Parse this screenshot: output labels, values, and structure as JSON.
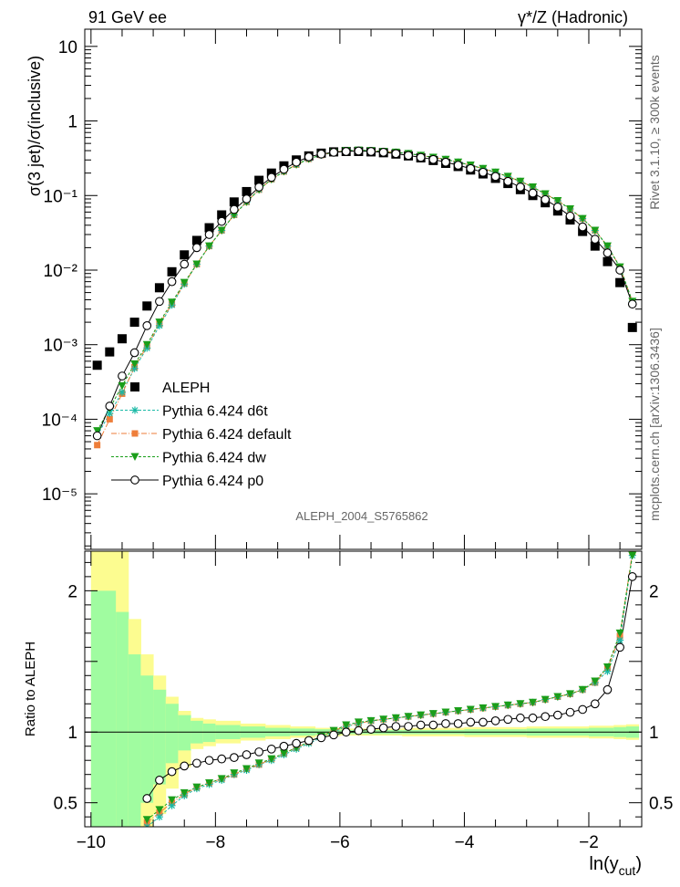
{
  "header": {
    "left": "91 GeV ee",
    "right": "γ*/Z (Hadronic)"
  },
  "side_labels": {
    "rivet": "Rivet 3.1.10, ≥ 300k events",
    "mcplots": "mcplots.cern.ch [arXiv:1306.3436]"
  },
  "analysis_id": "ALEPH_2004_S5765862",
  "colors": {
    "band_inner": "#a0fca0",
    "band_outer": "#fcfc90",
    "d6t": "#1ab9a6",
    "default": "#ee7e3a",
    "dw": "#1a9e1a",
    "p0": "#000000",
    "data": "#000000"
  },
  "chart_data": [
    {
      "type": "scatter",
      "panel": "main",
      "ylabel": "σ(3 jet)/σ(inclusive)",
      "yscale": "log",
      "ylim": [
        1.8e-06,
        17
      ],
      "xlim": [
        -10.1,
        -1.15
      ],
      "y_ticks": [
        {
          "v": 10,
          "label": "10"
        },
        {
          "v": 1,
          "label": "1"
        },
        {
          "v": 0.1,
          "label": "10⁻¹"
        },
        {
          "v": 0.01,
          "label": "10⁻²"
        },
        {
          "v": 0.001,
          "label": "10⁻³"
        },
        {
          "v": 0.0001,
          "label": "10⁻⁴"
        },
        {
          "v": 1e-05,
          "label": "10⁻⁵"
        }
      ],
      "legend": [
        "ALEPH",
        "Pythia 6.424 d6t",
        "Pythia 6.424 default",
        "Pythia 6.424 dw",
        "Pythia 6.424 p0"
      ],
      "legend_position": "left",
      "x": [
        -9.9,
        -9.7,
        -9.5,
        -9.3,
        -9.1,
        -8.9,
        -8.7,
        -8.5,
        -8.3,
        -8.1,
        -7.9,
        -7.7,
        -7.5,
        -7.3,
        -7.1,
        -6.9,
        -6.7,
        -6.5,
        -6.3,
        -6.1,
        -5.9,
        -5.7,
        -5.5,
        -5.3,
        -5.1,
        -4.9,
        -4.7,
        -4.5,
        -4.3,
        -4.1,
        -3.9,
        -3.7,
        -3.5,
        -3.3,
        -3.1,
        -2.9,
        -2.7,
        -2.5,
        -2.3,
        -2.1,
        -1.9,
        -1.7,
        -1.5,
        -1.3
      ],
      "series": [
        {
          "name": "ALEPH",
          "key": "data",
          "values": [
            0.00053,
            0.0008,
            0.0012,
            0.002,
            0.0033,
            0.0058,
            0.0095,
            0.016,
            0.025,
            0.037,
            0.055,
            0.082,
            0.113,
            0.16,
            0.2,
            0.25,
            0.3,
            0.34,
            0.37,
            0.385,
            0.39,
            0.39,
            0.385,
            0.375,
            0.36,
            0.34,
            0.32,
            0.295,
            0.27,
            0.245,
            0.22,
            0.195,
            0.17,
            0.145,
            0.12,
            0.1,
            0.08,
            0.062,
            0.047,
            0.033,
            0.021,
            0.013,
            0.0068,
            0.0017
          ]
        },
        {
          "name": "Pythia 6.424 d6t",
          "key": "d6t",
          "values": [
            6e-05,
            0.00012,
            0.00023,
            0.00048,
            0.0009,
            0.0018,
            0.0034,
            0.0065,
            0.012,
            0.021,
            0.034,
            0.055,
            0.082,
            0.12,
            0.165,
            0.21,
            0.26,
            0.31,
            0.35,
            0.38,
            0.4,
            0.405,
            0.4,
            0.39,
            0.38,
            0.365,
            0.345,
            0.325,
            0.305,
            0.28,
            0.255,
            0.23,
            0.205,
            0.18,
            0.155,
            0.13,
            0.105,
            0.085,
            0.066,
            0.049,
            0.034,
            0.021,
            0.011,
            0.0038
          ]
        },
        {
          "name": "Pythia 6.424 default",
          "key": "default",
          "values": [
            4.5e-05,
            0.0001,
            0.00022,
            0.0005,
            0.00095,
            0.0019,
            0.0035,
            0.0066,
            0.012,
            0.021,
            0.034,
            0.055,
            0.082,
            0.12,
            0.165,
            0.21,
            0.26,
            0.31,
            0.35,
            0.38,
            0.4,
            0.405,
            0.4,
            0.39,
            0.38,
            0.365,
            0.345,
            0.325,
            0.305,
            0.28,
            0.255,
            0.23,
            0.205,
            0.18,
            0.155,
            0.13,
            0.105,
            0.085,
            0.066,
            0.049,
            0.034,
            0.021,
            0.011,
            0.0038
          ]
        },
        {
          "name": "Pythia 6.424 dw",
          "key": "dw",
          "values": [
            7e-05,
            0.00014,
            0.00028,
            0.00055,
            0.001,
            0.002,
            0.0037,
            0.0068,
            0.012,
            0.021,
            0.034,
            0.055,
            0.082,
            0.12,
            0.165,
            0.21,
            0.26,
            0.31,
            0.35,
            0.38,
            0.4,
            0.405,
            0.4,
            0.39,
            0.38,
            0.365,
            0.345,
            0.325,
            0.305,
            0.28,
            0.255,
            0.23,
            0.205,
            0.18,
            0.155,
            0.13,
            0.105,
            0.085,
            0.066,
            0.049,
            0.034,
            0.021,
            0.011,
            0.0038
          ]
        },
        {
          "name": "Pythia 6.424 p0",
          "key": "p0",
          "values": [
            6e-05,
            0.00015,
            0.00038,
            0.00078,
            0.0018,
            0.0038,
            0.007,
            0.012,
            0.02,
            0.03,
            0.045,
            0.065,
            0.09,
            0.13,
            0.175,
            0.225,
            0.28,
            0.33,
            0.36,
            0.38,
            0.39,
            0.395,
            0.39,
            0.38,
            0.365,
            0.345,
            0.325,
            0.305,
            0.28,
            0.255,
            0.23,
            0.205,
            0.18,
            0.155,
            0.13,
            0.108,
            0.088,
            0.07,
            0.053,
            0.038,
            0.026,
            0.017,
            0.01,
            0.0035
          ]
        }
      ]
    },
    {
      "type": "scatter",
      "panel": "ratio",
      "ylabel": "Ratio to ALEPH",
      "xlabel": "ln(y_cut)",
      "ylim": [
        0.33,
        2.28
      ],
      "xlim": [
        -10.1,
        -1.15
      ],
      "y_ticks": [
        {
          "v": 2,
          "label": "2"
        },
        {
          "v": 1,
          "label": "1"
        },
        {
          "v": 0.5,
          "label": "0.5"
        }
      ],
      "x_ticks": [
        {
          "v": -10,
          "label": "−10"
        },
        {
          "v": -8,
          "label": "−8"
        },
        {
          "v": -6,
          "label": "−6"
        },
        {
          "v": -4,
          "label": "−4"
        },
        {
          "v": -2,
          "label": "−2"
        }
      ],
      "bin_edges": [
        -10,
        -9.6,
        -9.4,
        -9.2,
        -9.0,
        -8.8,
        -8.6,
        -8.4,
        -8.2,
        -8.0,
        -7.6,
        -7.2,
        -6.8,
        -6.4,
        -6.0,
        -5.0,
        -4.0,
        -3.0,
        -2.0,
        -1.6,
        -1.4,
        -1.2
      ],
      "band_inner": [
        [
          0.33,
          2.0
        ],
        [
          0.33,
          1.85
        ],
        [
          0.33,
          1.55
        ],
        [
          0.5,
          1.4
        ],
        [
          0.63,
          1.3
        ],
        [
          0.78,
          1.2
        ],
        [
          0.87,
          1.12
        ],
        [
          0.92,
          1.08
        ],
        [
          0.93,
          1.06
        ],
        [
          0.95,
          1.05
        ],
        [
          0.96,
          1.04
        ],
        [
          0.97,
          1.03
        ],
        [
          0.975,
          1.025
        ],
        [
          0.98,
          1.02
        ],
        [
          0.985,
          1.015
        ],
        [
          0.985,
          1.015
        ],
        [
          0.98,
          1.02
        ],
        [
          0.975,
          1.025
        ],
        [
          0.97,
          1.03
        ],
        [
          0.965,
          1.035
        ],
        [
          0.96,
          1.04
        ]
      ],
      "band_outer": [
        [
          0.33,
          2.28
        ],
        [
          0.33,
          2.28
        ],
        [
          0.33,
          1.8
        ],
        [
          0.33,
          1.55
        ],
        [
          0.42,
          1.4
        ],
        [
          0.6,
          1.25
        ],
        [
          0.75,
          1.15
        ],
        [
          0.88,
          1.1
        ],
        [
          0.9,
          1.09
        ],
        [
          0.92,
          1.08
        ],
        [
          0.94,
          1.06
        ],
        [
          0.95,
          1.05
        ],
        [
          0.96,
          1.04
        ],
        [
          0.97,
          1.03
        ],
        [
          0.975,
          1.025
        ],
        [
          0.97,
          1.03
        ],
        [
          0.965,
          1.035
        ],
        [
          0.96,
          1.04
        ],
        [
          0.955,
          1.045
        ],
        [
          0.95,
          1.05
        ],
        [
          0.945,
          1.055
        ]
      ],
      "x": [
        -9.1,
        -8.9,
        -8.7,
        -8.5,
        -8.3,
        -8.1,
        -7.9,
        -7.7,
        -7.5,
        -7.3,
        -7.1,
        -6.9,
        -6.7,
        -6.5,
        -6.3,
        -6.1,
        -5.9,
        -5.7,
        -5.5,
        -5.3,
        -5.1,
        -4.9,
        -4.7,
        -4.5,
        -4.3,
        -4.1,
        -3.9,
        -3.7,
        -3.5,
        -3.3,
        -3.1,
        -2.9,
        -2.7,
        -2.5,
        -2.3,
        -2.1,
        -1.9,
        -1.7,
        -1.5,
        -1.3
      ],
      "series": [
        {
          "name": "Pythia 6.424 d6t",
          "key": "d6t",
          "values": [
            0.33,
            0.4,
            0.48,
            0.55,
            0.6,
            0.63,
            0.66,
            0.7,
            0.73,
            0.77,
            0.8,
            0.84,
            0.88,
            0.92,
            0.96,
            1.0,
            1.04,
            1.06,
            1.08,
            1.09,
            1.1,
            1.11,
            1.12,
            1.13,
            1.14,
            1.15,
            1.16,
            1.17,
            1.18,
            1.19,
            1.2,
            1.21,
            1.23,
            1.25,
            1.27,
            1.3,
            1.35,
            1.43,
            1.65,
            2.25
          ]
        },
        {
          "name": "Pythia 6.424 default",
          "key": "default",
          "values": [
            0.36,
            0.43,
            0.5,
            0.56,
            0.61,
            0.64,
            0.67,
            0.7,
            0.74,
            0.77,
            0.81,
            0.85,
            0.89,
            0.93,
            0.97,
            1.01,
            1.04,
            1.06,
            1.08,
            1.09,
            1.1,
            1.11,
            1.12,
            1.13,
            1.14,
            1.15,
            1.16,
            1.17,
            1.18,
            1.19,
            1.2,
            1.21,
            1.23,
            1.25,
            1.27,
            1.3,
            1.35,
            1.45,
            1.68,
            2.27
          ]
        },
        {
          "name": "Pythia 6.424 dw",
          "key": "dw",
          "values": [
            0.38,
            0.45,
            0.52,
            0.57,
            0.61,
            0.64,
            0.67,
            0.71,
            0.74,
            0.78,
            0.81,
            0.85,
            0.89,
            0.93,
            0.97,
            1.01,
            1.05,
            1.07,
            1.08,
            1.09,
            1.1,
            1.11,
            1.12,
            1.13,
            1.14,
            1.15,
            1.16,
            1.17,
            1.18,
            1.19,
            1.2,
            1.21,
            1.23,
            1.25,
            1.27,
            1.3,
            1.36,
            1.46,
            1.7,
            2.25
          ]
        },
        {
          "name": "Pythia 6.424 p0",
          "key": "p0",
          "values": [
            0.53,
            0.66,
            0.72,
            0.76,
            0.78,
            0.8,
            0.81,
            0.82,
            0.84,
            0.86,
            0.88,
            0.9,
            0.92,
            0.94,
            0.96,
            0.98,
            1.0,
            1.01,
            1.02,
            1.03,
            1.04,
            1.04,
            1.05,
            1.05,
            1.06,
            1.06,
            1.07,
            1.07,
            1.08,
            1.09,
            1.1,
            1.1,
            1.11,
            1.12,
            1.14,
            1.16,
            1.2,
            1.3,
            1.6,
            2.1
          ]
        }
      ]
    }
  ]
}
